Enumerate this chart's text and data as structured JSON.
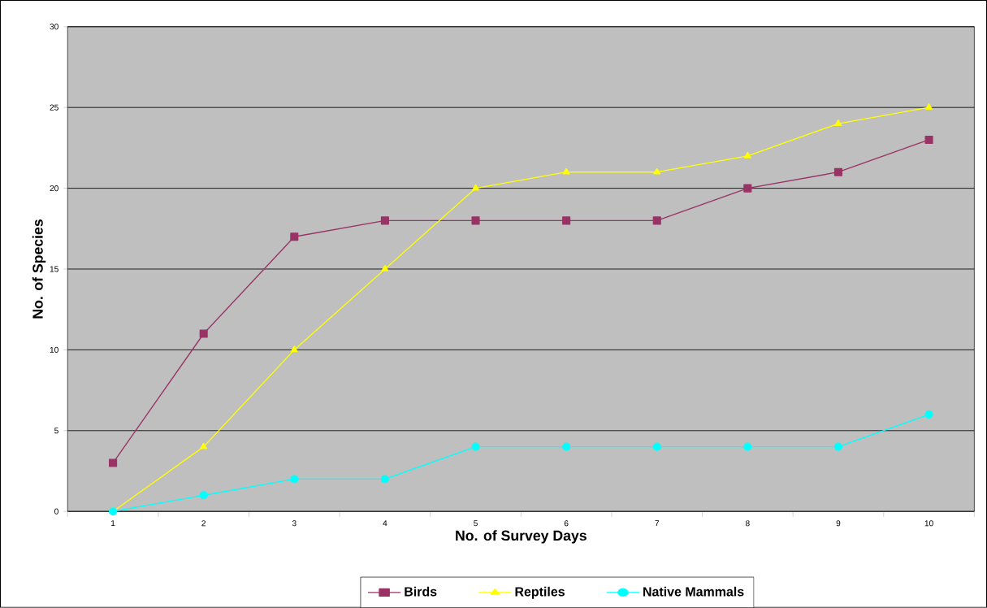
{
  "chart_data": {
    "type": "line",
    "xlabel": "No. of Survey Days",
    "ylabel": "No. of Species",
    "categories": [
      "1",
      "2",
      "3",
      "4",
      "5",
      "6",
      "7",
      "8",
      "9",
      "10"
    ],
    "series": [
      {
        "name": "Birds",
        "color": "#993366",
        "marker": "square",
        "values": [
          3,
          11,
          17,
          18,
          18,
          18,
          18,
          20,
          21,
          23
        ]
      },
      {
        "name": "Reptiles",
        "color": "#ffff00",
        "marker": "triangle",
        "values": [
          0,
          4,
          10,
          15,
          20,
          21,
          21,
          22,
          24,
          25
        ]
      },
      {
        "name": "Native Mammals",
        "color": "#00ffff",
        "marker": "circle",
        "values": [
          0,
          1,
          2,
          2,
          4,
          4,
          4,
          4,
          4,
          6
        ]
      }
    ],
    "ylim": [
      0,
      30
    ],
    "yticks": [
      0,
      5,
      10,
      15,
      20,
      25,
      30
    ],
    "grid": "y",
    "legend": "bottom"
  }
}
